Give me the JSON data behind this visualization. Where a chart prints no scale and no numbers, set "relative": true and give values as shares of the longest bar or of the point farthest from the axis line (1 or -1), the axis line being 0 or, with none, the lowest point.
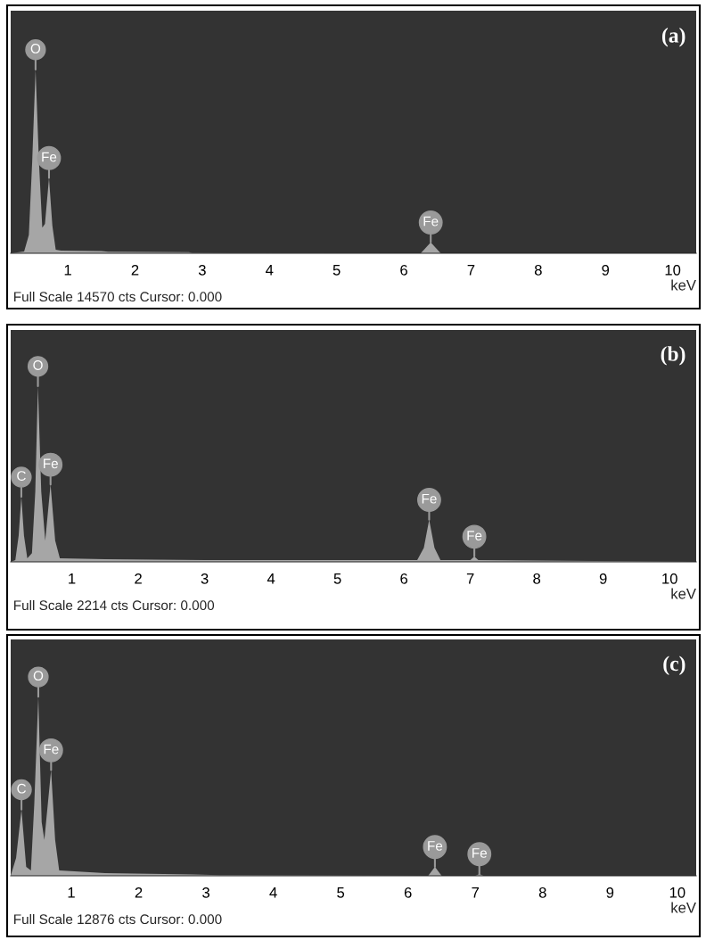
{
  "chart_data": [
    {
      "type": "area",
      "title": "(a)",
      "xlabel": "keV",
      "relative": true,
      "xlim": [
        0.15,
        10.35
      ],
      "xticks": [
        1,
        2,
        3,
        4,
        5,
        6,
        7,
        8,
        9,
        10
      ],
      "series": [
        {
          "color": "#a6a6a6",
          "x": [
            0.15,
            0.35,
            0.42,
            0.47,
            0.52,
            0.57,
            0.62,
            0.66,
            0.72,
            0.77,
            0.82,
            0.9,
            1.5,
            1.6,
            2.8,
            2.85,
            6.25,
            6.3,
            6.4,
            6.5,
            6.55,
            10.35
          ],
          "values": [
            0,
            0.01,
            0.1,
            0.5,
            1.0,
            0.5,
            0.14,
            0.16,
            0.41,
            0.15,
            0.02,
            0.015,
            0.012,
            0.008,
            0.006,
            0.002,
            0,
            0.02,
            0.06,
            0.02,
            0,
            0
          ]
        }
      ],
      "annotations": [
        {
          "text": "O",
          "x": 0.52,
          "y": 1.0
        },
        {
          "text": "Fe",
          "x": 0.72,
          "y": 0.41
        },
        {
          "text": "Fe",
          "x": 6.4,
          "y": 0.06
        },
        "Full Scale 14570 cts Cursor: 0.000"
      ]
    },
    {
      "type": "area",
      "title": "(b)",
      "xlabel": "keV",
      "relative": true,
      "xlim": [
        0.08,
        10.4
      ],
      "xticks": [
        1,
        2,
        3,
        4,
        5,
        6,
        7,
        8,
        9,
        10
      ],
      "series": [
        {
          "color": "#a6a6a6",
          "x": [
            0.08,
            0.15,
            0.2,
            0.24,
            0.28,
            0.33,
            0.4,
            0.45,
            0.49,
            0.54,
            0.6,
            0.68,
            0.75,
            0.82,
            1.5,
            3,
            5,
            6.2,
            6.3,
            6.38,
            6.46,
            6.55,
            7.0,
            7.06,
            7.12,
            10.4
          ],
          "values": [
            0,
            0.01,
            0.15,
            0.37,
            0.15,
            0.02,
            0.05,
            0.4,
            1.0,
            0.4,
            0.12,
            0.44,
            0.12,
            0.02,
            0.015,
            0.01,
            0.01,
            0.01,
            0.08,
            0.24,
            0.08,
            0.01,
            0.01,
            0.03,
            0.01,
            0
          ]
        }
      ],
      "annotations": [
        {
          "text": "C",
          "x": 0.24,
          "y": 0.37
        },
        {
          "text": "O",
          "x": 0.49,
          "y": 1.0
        },
        {
          "text": "Fe",
          "x": 0.68,
          "y": 0.44
        },
        {
          "text": "Fe",
          "x": 6.38,
          "y": 0.24
        },
        {
          "text": "Fe",
          "x": 7.06,
          "y": 0.03
        },
        "Full Scale 2214 cts Cursor: 0.000"
      ]
    },
    {
      "type": "area",
      "title": "(c)",
      "xlabel": "keV",
      "relative": true,
      "xlim": [
        0.1,
        10.28
      ],
      "xticks": [
        1,
        2,
        3,
        4,
        5,
        6,
        7,
        8,
        9,
        10
      ],
      "series": [
        {
          "color": "#a6a6a6",
          "x": [
            0.1,
            0.18,
            0.26,
            0.33,
            0.4,
            0.45,
            0.51,
            0.56,
            0.6,
            0.7,
            0.76,
            0.82,
            1.5,
            2.8,
            3.2,
            6.3,
            6.4,
            6.5,
            7.0,
            7.06,
            7.12,
            10.28
          ],
          "values": [
            0,
            0.1,
            0.37,
            0.05,
            0.03,
            0.4,
            1.0,
            0.3,
            0.2,
            0.59,
            0.2,
            0.03,
            0.015,
            0.008,
            0.004,
            0,
            0.05,
            0,
            0,
            0.01,
            0,
            0
          ]
        }
      ],
      "annotations": [
        {
          "text": "C",
          "x": 0.26,
          "y": 0.37
        },
        {
          "text": "O",
          "x": 0.51,
          "y": 1.0
        },
        {
          "text": "Fe",
          "x": 0.7,
          "y": 0.59
        },
        {
          "text": "Fe",
          "x": 6.4,
          "y": 0.05
        },
        {
          "text": "Fe",
          "x": 7.06,
          "y": 0.01
        },
        "Full Scale 12876 cts Cursor: 0.000"
      ]
    }
  ]
}
